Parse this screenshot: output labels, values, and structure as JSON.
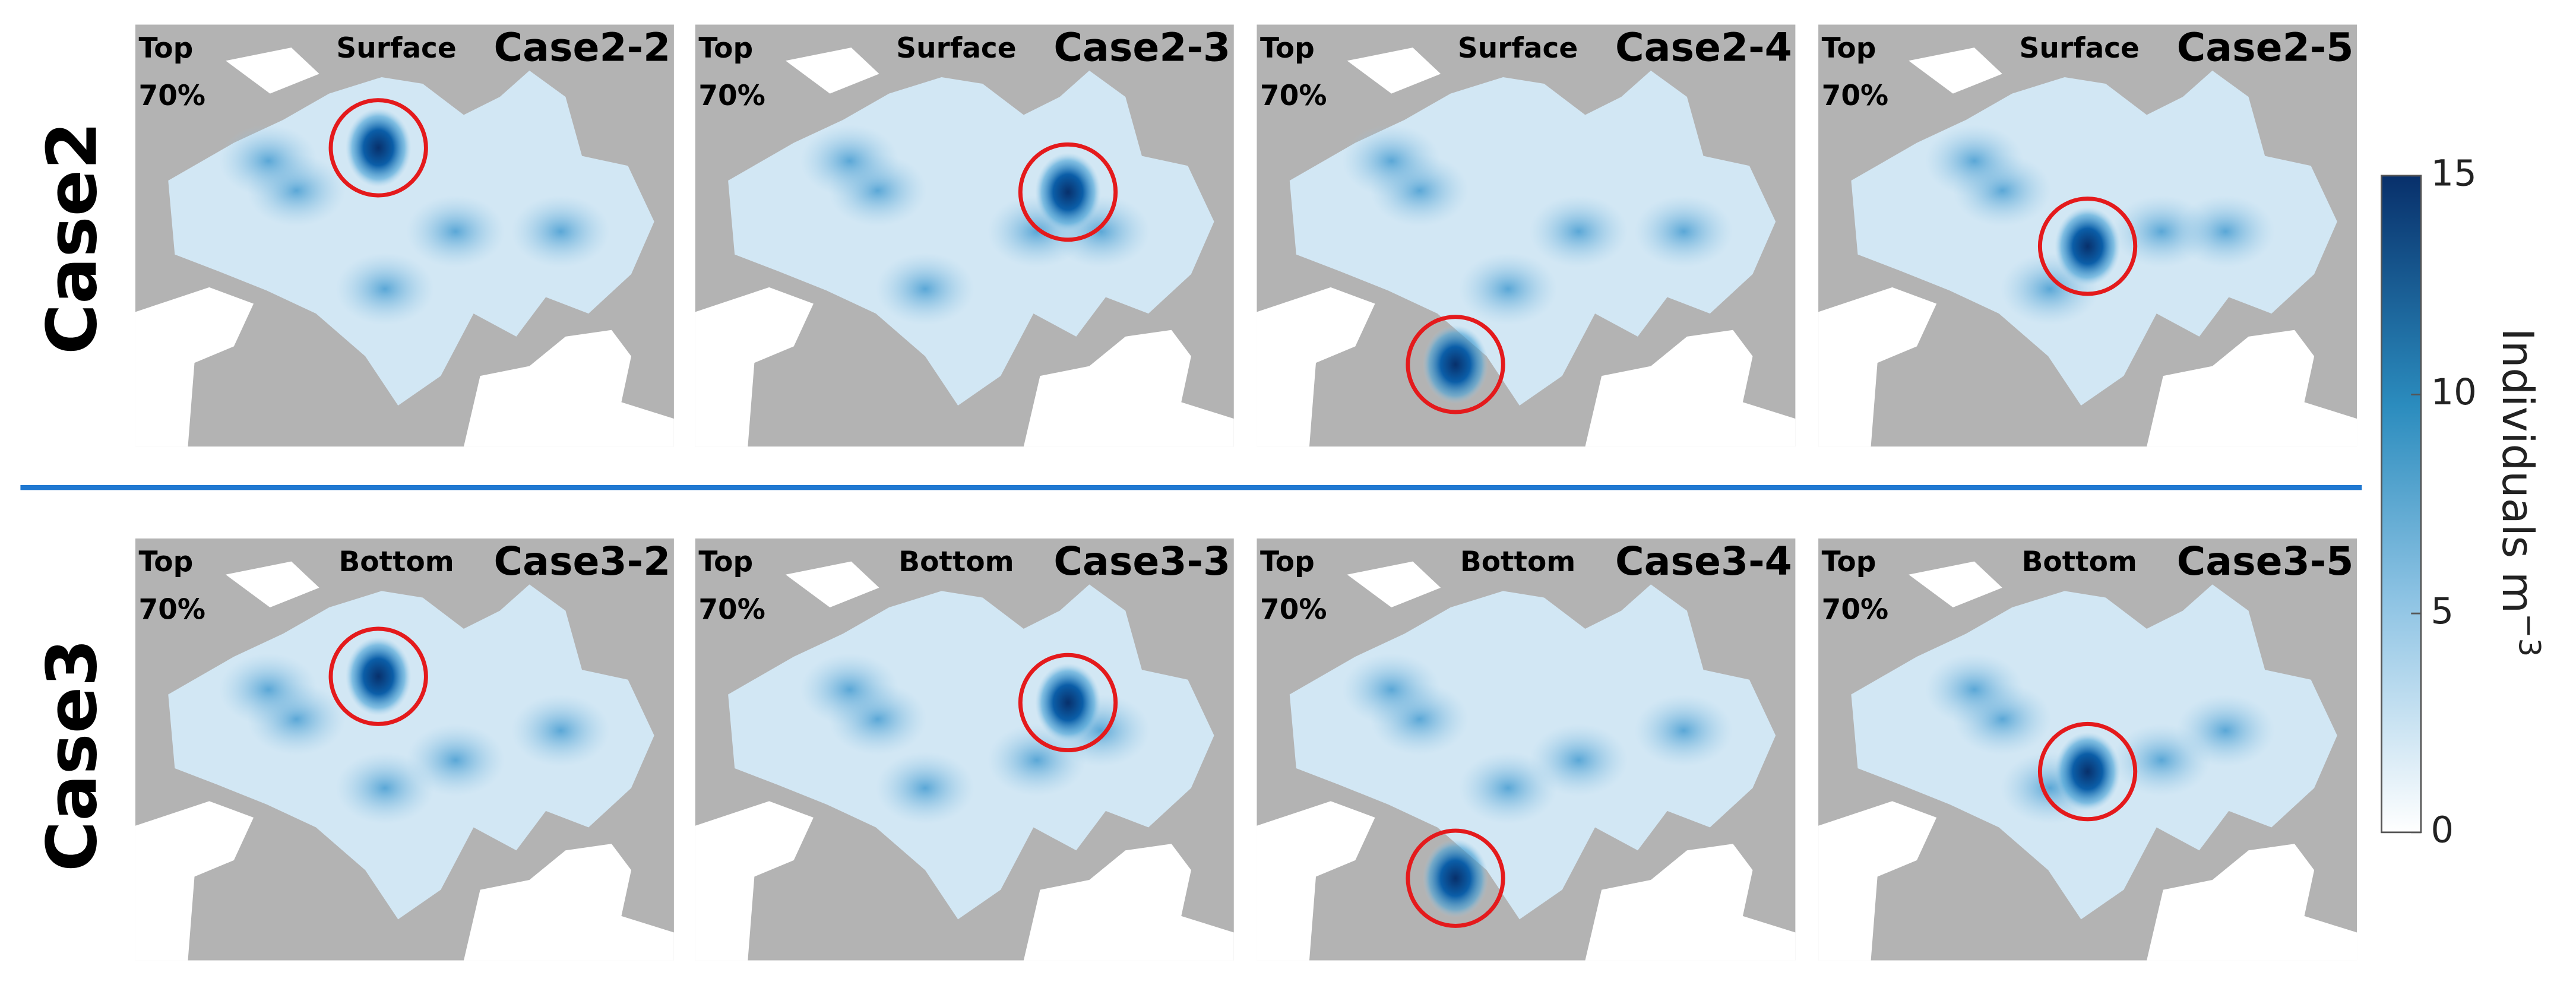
{
  "rows": [
    {
      "label": "Case2",
      "panels": [
        {
          "top": "Top",
          "percent": "70%",
          "layer": "Surface",
          "case": "Case2-2"
        },
        {
          "top": "Top",
          "percent": "70%",
          "layer": "Surface",
          "case": "Case2-3"
        },
        {
          "top": "Top",
          "percent": "70%",
          "layer": "Surface",
          "case": "Case2-4"
        },
        {
          "top": "Top",
          "percent": "70%",
          "layer": "Surface",
          "case": "Case2-5"
        }
      ]
    },
    {
      "label": "Case3",
      "panels": [
        {
          "top": "Top",
          "percent": "70%",
          "layer": "Bottom",
          "case": "Case3-2"
        },
        {
          "top": "Top",
          "percent": "70%",
          "layer": "Bottom",
          "case": "Case3-3"
        },
        {
          "top": "Top",
          "percent": "70%",
          "layer": "Bottom",
          "case": "Case3-4"
        },
        {
          "top": "Top",
          "percent": "70%",
          "layer": "Bottom",
          "case": "Case3-5"
        }
      ]
    }
  ],
  "colorbar": {
    "label": "Individuals m",
    "label_superscript": "−3",
    "lim": [
      0,
      15
    ],
    "ticks": [
      0,
      5,
      10,
      15
    ]
  }
}
